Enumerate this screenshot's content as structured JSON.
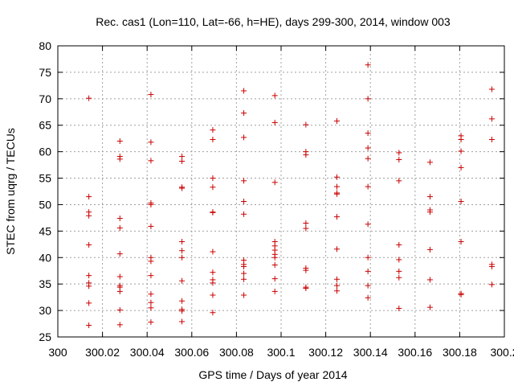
{
  "chart_data": {
    "type": "scatter",
    "title": "Rec. cas1 (Lon=110, Lat=-66, h=HE), days 299-300, 2014, window 003",
    "xlabel": "GPS time / Days of year 2014",
    "ylabel": "STEC from uqrg / TECUs",
    "xlim": [
      300,
      300.2
    ],
    "ylim": [
      25,
      80
    ],
    "xticks": [
      "300",
      "300.02",
      "300.04",
      "300.06",
      "300.08",
      "300.1",
      "300.12",
      "300.14",
      "300.16",
      "300.18",
      "300.2"
    ],
    "yticks": [
      "25",
      "30",
      "35",
      "40",
      "45",
      "50",
      "55",
      "60",
      "65",
      "70",
      "75",
      "80"
    ],
    "grid": true,
    "marker": "+",
    "marker_color": "#cc0000",
    "series": [
      {
        "points": [
          [
            300.0139,
            70.1
          ],
          [
            300.0139,
            51.5
          ],
          [
            300.0139,
            48.6
          ],
          [
            300.0139,
            47.9
          ],
          [
            300.0139,
            42.4
          ],
          [
            300.0139,
            36.6
          ],
          [
            300.0139,
            35.2
          ],
          [
            300.0139,
            34.6
          ],
          [
            300.0139,
            31.4
          ],
          [
            300.0139,
            27.2
          ],
          [
            300.0278,
            62.0
          ],
          [
            300.0278,
            59.1
          ],
          [
            300.0278,
            58.6
          ],
          [
            300.0278,
            47.4
          ],
          [
            300.0278,
            45.6
          ],
          [
            300.0278,
            40.7
          ],
          [
            300.0278,
            36.4
          ],
          [
            300.0278,
            34.7
          ],
          [
            300.0278,
            34.4
          ],
          [
            300.0278,
            33.6
          ],
          [
            300.0278,
            30.1
          ],
          [
            300.0278,
            27.3
          ],
          [
            300.0417,
            70.8
          ],
          [
            300.0417,
            61.8
          ],
          [
            300.0417,
            58.3
          ],
          [
            300.0417,
            50.3
          ],
          [
            300.0417,
            50.0
          ],
          [
            300.0417,
            45.9
          ],
          [
            300.0417,
            40.0
          ],
          [
            300.0417,
            39.3
          ],
          [
            300.0417,
            36.6
          ],
          [
            300.0417,
            33.1
          ],
          [
            300.0417,
            31.5
          ],
          [
            300.0417,
            30.5
          ],
          [
            300.0417,
            27.8
          ],
          [
            300.0556,
            59.1
          ],
          [
            300.0556,
            58.2
          ],
          [
            300.0556,
            53.3
          ],
          [
            300.0556,
            53.1
          ],
          [
            300.0556,
            43.0
          ],
          [
            300.0556,
            41.3
          ],
          [
            300.0556,
            40.0
          ],
          [
            300.0556,
            35.6
          ],
          [
            300.0556,
            31.8
          ],
          [
            300.0556,
            30.2
          ],
          [
            300.0556,
            29.9
          ],
          [
            300.0556,
            27.9
          ],
          [
            300.0694,
            64.1
          ],
          [
            300.0694,
            62.3
          ],
          [
            300.0694,
            55.0
          ],
          [
            300.0694,
            53.3
          ],
          [
            300.0694,
            48.6
          ],
          [
            300.0694,
            48.5
          ],
          [
            300.0694,
            41.1
          ],
          [
            300.0694,
            37.2
          ],
          [
            300.0694,
            35.8
          ],
          [
            300.0694,
            35.2
          ],
          [
            300.0694,
            32.9
          ],
          [
            300.0694,
            29.6
          ],
          [
            300.0833,
            71.5
          ],
          [
            300.0833,
            67.3
          ],
          [
            300.0833,
            62.7
          ],
          [
            300.0833,
            54.5
          ],
          [
            300.0833,
            50.6
          ],
          [
            300.0833,
            48.2
          ],
          [
            300.0833,
            39.5
          ],
          [
            300.0833,
            38.7
          ],
          [
            300.0833,
            38.3
          ],
          [
            300.0833,
            37.0
          ],
          [
            300.0833,
            35.9
          ],
          [
            300.0833,
            32.9
          ],
          [
            300.0972,
            70.6
          ],
          [
            300.0972,
            65.5
          ],
          [
            300.0972,
            54.2
          ],
          [
            300.0972,
            43.0
          ],
          [
            300.0972,
            42.2
          ],
          [
            300.0972,
            41.4
          ],
          [
            300.0972,
            40.6
          ],
          [
            300.0972,
            40.0
          ],
          [
            300.0972,
            38.6
          ],
          [
            300.0972,
            36.0
          ],
          [
            300.0972,
            33.6
          ],
          [
            300.1111,
            65.1
          ],
          [
            300.1111,
            60.0
          ],
          [
            300.1111,
            59.4
          ],
          [
            300.1111,
            46.5
          ],
          [
            300.1111,
            45.5
          ],
          [
            300.1111,
            38.0
          ],
          [
            300.1111,
            37.6
          ],
          [
            300.1111,
            34.4
          ],
          [
            300.1111,
            34.2
          ],
          [
            300.125,
            65.8
          ],
          [
            300.125,
            55.2
          ],
          [
            300.125,
            53.4
          ],
          [
            300.125,
            52.2
          ],
          [
            300.125,
            52.0
          ],
          [
            300.125,
            47.7
          ],
          [
            300.125,
            41.6
          ],
          [
            300.125,
            35.9
          ],
          [
            300.125,
            34.7
          ],
          [
            300.125,
            33.7
          ],
          [
            300.1389,
            76.4
          ],
          [
            300.1389,
            70.0
          ],
          [
            300.1389,
            63.5
          ],
          [
            300.1389,
            60.7
          ],
          [
            300.1389,
            58.7
          ],
          [
            300.1389,
            53.4
          ],
          [
            300.1389,
            46.3
          ],
          [
            300.1389,
            40.0
          ],
          [
            300.1389,
            37.4
          ],
          [
            300.1389,
            34.7
          ],
          [
            300.1389,
            32.4
          ],
          [
            300.1528,
            59.8
          ],
          [
            300.1528,
            58.5
          ],
          [
            300.1528,
            54.5
          ],
          [
            300.1528,
            42.4
          ],
          [
            300.1528,
            39.6
          ],
          [
            300.1528,
            37.4
          ],
          [
            300.1528,
            36.2
          ],
          [
            300.1528,
            30.4
          ],
          [
            300.1667,
            58.0
          ],
          [
            300.1667,
            51.5
          ],
          [
            300.1667,
            49.0
          ],
          [
            300.1667,
            48.6
          ],
          [
            300.1667,
            41.5
          ],
          [
            300.1667,
            35.8
          ],
          [
            300.1667,
            30.6
          ],
          [
            300.1806,
            63.0
          ],
          [
            300.1806,
            62.3
          ],
          [
            300.1806,
            60.1
          ],
          [
            300.1806,
            57.0
          ],
          [
            300.1806,
            50.6
          ],
          [
            300.1806,
            43.0
          ],
          [
            300.1806,
            33.2
          ],
          [
            300.1806,
            33.0
          ],
          [
            300.1944,
            71.8
          ],
          [
            300.1944,
            66.2
          ],
          [
            300.1944,
            62.3
          ],
          [
            300.1944,
            38.7
          ],
          [
            300.1944,
            38.3
          ],
          [
            300.1944,
            34.9
          ]
        ]
      }
    ]
  }
}
